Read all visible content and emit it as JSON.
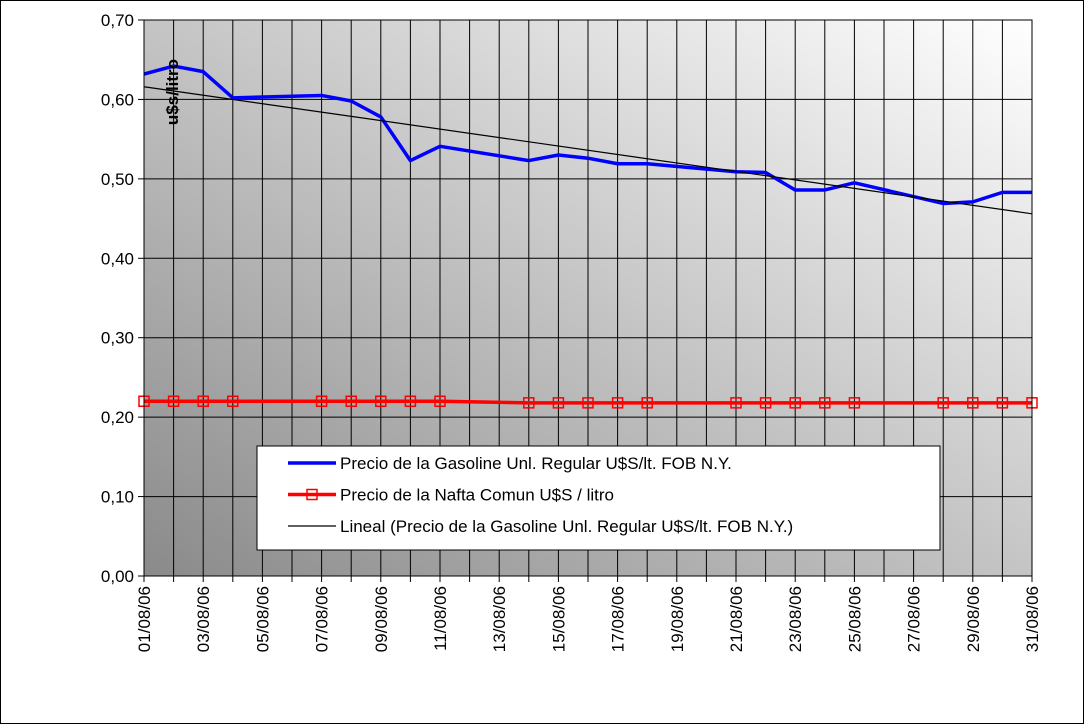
{
  "chart_data": {
    "type": "line",
    "ylabel": "u$s/litro",
    "xlim": [
      1,
      31
    ],
    "xticks": [
      {
        "value": 1,
        "label": "01/08/06"
      },
      {
        "value": 3,
        "label": "03/08/06"
      },
      {
        "value": 5,
        "label": "05/08/06"
      },
      {
        "value": 7,
        "label": "07/08/06"
      },
      {
        "value": 9,
        "label": "09/08/06"
      },
      {
        "value": 11,
        "label": "11/08/06"
      },
      {
        "value": 13,
        "label": "13/08/06"
      },
      {
        "value": 15,
        "label": "15/08/06"
      },
      {
        "value": 17,
        "label": "17/08/06"
      },
      {
        "value": 19,
        "label": "19/08/06"
      },
      {
        "value": 21,
        "label": "21/08/06"
      },
      {
        "value": 23,
        "label": "23/08/06"
      },
      {
        "value": 25,
        "label": "25/08/06"
      },
      {
        "value": 27,
        "label": "27/08/06"
      },
      {
        "value": 29,
        "label": "29/08/06"
      },
      {
        "value": 31,
        "label": "31/08/06"
      }
    ],
    "minor_xticks": [
      2,
      4,
      6,
      8,
      10,
      12,
      14,
      16,
      18,
      20,
      22,
      24,
      26,
      28,
      30
    ],
    "ylim": [
      0,
      0.7
    ],
    "yticks": [
      {
        "value": 0,
        "label": "0,00"
      },
      {
        "value": 0.1,
        "label": "0,10"
      },
      {
        "value": 0.2,
        "label": "0,20"
      },
      {
        "value": 0.3,
        "label": "0,30"
      },
      {
        "value": 0.4,
        "label": "0,40"
      },
      {
        "value": 0.5,
        "label": "0,50"
      },
      {
        "value": 0.6,
        "label": "0,60"
      },
      {
        "value": 0.7,
        "label": "0,70"
      }
    ],
    "grid": true,
    "series": [
      {
        "name": "Precio de la Gasoline Unl. Regular  U$S/lt. FOB N.Y.",
        "color": "#0000ff",
        "marker": "none",
        "x": [
          1,
          2,
          3,
          4,
          7,
          8,
          9,
          10,
          11,
          14,
          15,
          16,
          17,
          18,
          21,
          22,
          23,
          24,
          25,
          28,
          29,
          30,
          31
        ],
        "values": [
          0.632,
          0.642,
          0.635,
          0.602,
          0.605,
          0.598,
          0.578,
          0.523,
          0.541,
          0.523,
          0.53,
          0.526,
          0.519,
          0.519,
          0.509,
          0.508,
          0.486,
          0.486,
          0.495,
          0.469,
          0.471,
          0.483,
          0.483
        ]
      },
      {
        "name": "Precio de la Nafta Comun U$S / litro",
        "color": "#ff0000",
        "marker": "square",
        "x": [
          1,
          2,
          3,
          4,
          7,
          8,
          9,
          10,
          11,
          14,
          15,
          16,
          17,
          18,
          21,
          22,
          23,
          24,
          25,
          28,
          29,
          30,
          31
        ],
        "values": [
          0.22,
          0.22,
          0.22,
          0.22,
          0.22,
          0.22,
          0.22,
          0.22,
          0.22,
          0.218,
          0.218,
          0.218,
          0.218,
          0.218,
          0.218,
          0.218,
          0.218,
          0.218,
          0.218,
          0.218,
          0.218,
          0.218,
          0.218
        ]
      },
      {
        "name": "Lineal (Precio de la Gasoline Unl. Regular  U$S/lt. FOB N.Y.)",
        "color": "#000000",
        "marker": "none",
        "x": [
          1,
          31
        ],
        "values": [
          0.616,
          0.456
        ]
      }
    ]
  }
}
